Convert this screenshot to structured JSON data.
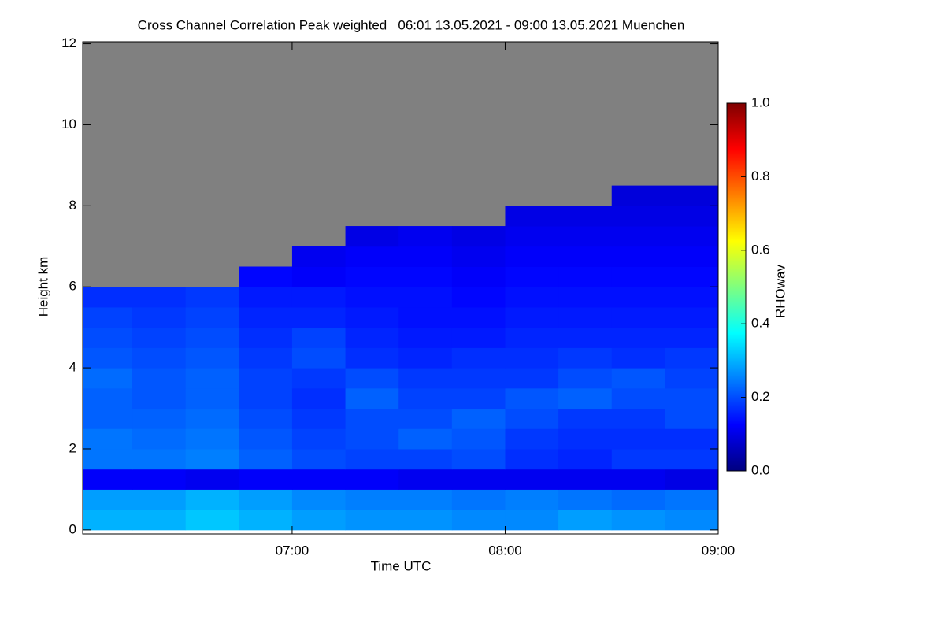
{
  "chart_data": {
    "type": "heatmap",
    "title": "Cross Channel Correlation Peak weighted   06:01 13.05.2021 - 09:00 13.05.2021 Muenchen",
    "xlabel": "Time UTC",
    "ylabel": "Height km",
    "colorbar_label": "RHOwav",
    "xlim": [
      6.017,
      9.0
    ],
    "xticks": [
      {
        "value": 7,
        "label": "07:00"
      },
      {
        "value": 8,
        "label": "08:00"
      },
      {
        "value": 9,
        "label": "09:00"
      }
    ],
    "ylim": [
      -0.1,
      12.05
    ],
    "yticks": [
      0,
      2,
      4,
      6,
      8,
      10,
      12
    ],
    "clim": [
      0,
      1
    ],
    "cticks": [
      {
        "value": 0,
        "label": "0.0"
      },
      {
        "value": 0.2,
        "label": "0.2"
      },
      {
        "value": 0.4,
        "label": "0.4"
      },
      {
        "value": 0.6,
        "label": "0.6"
      },
      {
        "value": 0.8,
        "label": "0.8"
      },
      {
        "value": 1,
        "label": "1.0"
      }
    ],
    "colormap": [
      "#00007f",
      "#0000ff",
      "#007fff",
      "#00ffff",
      "#7fff7f",
      "#ffff00",
      "#ff7f00",
      "#ff0000",
      "#7f0000"
    ],
    "missing_color": "#808080",
    "x_bins": [
      6.017,
      6.25,
      6.5,
      6.75,
      7.0,
      7.25,
      7.5,
      7.75,
      8.0,
      8.25,
      8.5,
      8.75,
      9.0
    ],
    "y_bins": [
      0,
      0.5,
      1,
      1.5,
      2,
      2.5,
      3,
      3.5,
      4,
      4.5,
      5,
      5.5,
      6,
      6.5,
      7,
      7.5,
      8,
      8.5,
      9,
      9.5,
      10,
      10.5,
      11,
      11.5,
      12
    ],
    "values": [
      [
        0.3,
        0.3,
        0.32,
        0.3,
        0.28,
        0.27,
        0.27,
        0.26,
        0.26,
        0.28,
        0.27,
        0.26
      ],
      [
        0.28,
        0.28,
        0.3,
        0.28,
        0.26,
        0.25,
        0.25,
        0.24,
        0.25,
        0.24,
        0.23,
        0.24
      ],
      [
        0.12,
        0.12,
        0.11,
        0.12,
        0.12,
        0.12,
        0.11,
        0.11,
        0.11,
        0.11,
        0.11,
        0.1
      ],
      [
        0.24,
        0.24,
        0.25,
        0.22,
        0.2,
        0.19,
        0.19,
        0.2,
        0.17,
        0.16,
        0.18,
        0.18
      ],
      [
        0.24,
        0.23,
        0.24,
        0.21,
        0.19,
        0.2,
        0.22,
        0.21,
        0.18,
        0.17,
        0.17,
        0.17
      ],
      [
        0.22,
        0.22,
        0.23,
        0.2,
        0.18,
        0.2,
        0.2,
        0.22,
        0.2,
        0.18,
        0.18,
        0.2
      ],
      [
        0.22,
        0.21,
        0.22,
        0.19,
        0.17,
        0.22,
        0.19,
        0.19,
        0.21,
        0.22,
        0.2,
        0.2
      ],
      [
        0.23,
        0.21,
        0.22,
        0.19,
        0.18,
        0.2,
        0.18,
        0.18,
        0.18,
        0.2,
        0.21,
        0.19
      ],
      [
        0.21,
        0.2,
        0.21,
        0.18,
        0.2,
        0.17,
        0.16,
        0.17,
        0.17,
        0.18,
        0.17,
        0.18
      ],
      [
        0.2,
        0.19,
        0.2,
        0.17,
        0.19,
        0.16,
        0.15,
        0.15,
        0.16,
        0.16,
        0.16,
        0.16
      ],
      [
        0.19,
        0.18,
        0.19,
        0.16,
        0.16,
        0.15,
        0.14,
        0.14,
        0.15,
        0.15,
        0.15,
        0.15
      ],
      [
        0.17,
        0.17,
        0.18,
        0.15,
        0.15,
        0.14,
        0.14,
        0.13,
        0.14,
        0.14,
        0.14,
        0.14
      ],
      [
        null,
        null,
        null,
        0.13,
        0.12,
        0.13,
        0.13,
        0.12,
        0.13,
        0.13,
        0.13,
        0.13
      ],
      [
        null,
        null,
        null,
        null,
        0.11,
        0.12,
        0.12,
        0.11,
        0.12,
        0.12,
        0.12,
        0.12
      ],
      [
        null,
        null,
        null,
        null,
        null,
        0.1,
        0.11,
        0.1,
        0.11,
        0.11,
        0.11,
        0.11
      ],
      [
        null,
        null,
        null,
        null,
        null,
        null,
        null,
        null,
        0.1,
        0.1,
        0.1,
        0.1
      ],
      [
        null,
        null,
        null,
        null,
        null,
        null,
        null,
        null,
        null,
        null,
        0.09,
        0.09
      ],
      [
        null,
        null,
        null,
        null,
        null,
        null,
        null,
        null,
        null,
        null,
        null,
        null
      ],
      [
        null,
        null,
        null,
        null,
        null,
        null,
        null,
        null,
        null,
        null,
        null,
        null
      ],
      [
        null,
        null,
        null,
        null,
        null,
        null,
        null,
        null,
        null,
        null,
        null,
        null
      ],
      [
        null,
        null,
        null,
        null,
        null,
        null,
        null,
        null,
        null,
        null,
        null,
        null
      ],
      [
        null,
        null,
        null,
        null,
        null,
        null,
        null,
        null,
        null,
        null,
        null,
        null
      ],
      [
        null,
        null,
        null,
        null,
        null,
        null,
        null,
        null,
        null,
        null,
        null,
        null
      ],
      [
        null,
        null,
        null,
        null,
        null,
        null,
        null,
        null,
        null,
        null,
        null,
        null
      ]
    ]
  }
}
